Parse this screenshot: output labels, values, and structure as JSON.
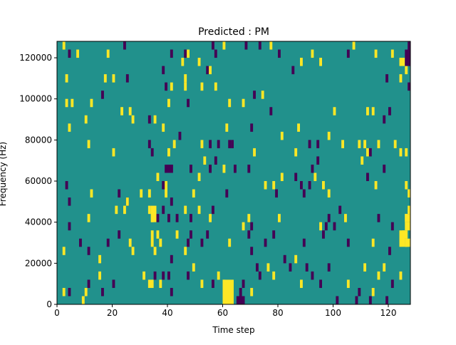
{
  "chart_data": {
    "type": "heatmap",
    "title": "Predicted : PM",
    "xlabel": "Time step",
    "ylabel": "Frequency (Hz)",
    "xlim": [
      0,
      128
    ],
    "ylim": [
      0,
      128000
    ],
    "xticks": [
      0,
      20,
      40,
      60,
      80,
      100,
      120
    ],
    "xtick_labels": [
      "0",
      "20",
      "40",
      "60",
      "80",
      "100",
      "120"
    ],
    "yticks": [
      0,
      20000,
      40000,
      60000,
      80000,
      100000,
      120000
    ],
    "ytick_labels": [
      "0",
      "20000",
      "40000",
      "60000",
      "80000",
      "100000",
      "120000"
    ],
    "value_range": [
      -1,
      1
    ],
    "colors": {
      "background": "#21918c",
      "high": "#fde725",
      "low": "#440154"
    },
    "bin_height_hz": 4000,
    "cells": [
      [
        2,
        124000,
        1
      ],
      [
        4,
        120000,
        -1
      ],
      [
        7,
        120000,
        1
      ],
      [
        18,
        120000,
        1
      ],
      [
        24,
        124000,
        -1
      ],
      [
        41,
        120000,
        -1
      ],
      [
        46,
        120000,
        -1
      ],
      [
        45,
        116000,
        1
      ],
      [
        47,
        120000,
        1
      ],
      [
        56,
        124000,
        -1
      ],
      [
        60,
        124000,
        1
      ],
      [
        68,
        124000,
        -1
      ],
      [
        73,
        124000,
        -1
      ],
      [
        77,
        124000,
        1
      ],
      [
        80,
        120000,
        -1
      ],
      [
        88,
        116000,
        1
      ],
      [
        92,
        120000,
        1
      ],
      [
        105,
        120000,
        -1
      ],
      [
        107,
        124000,
        1
      ],
      [
        115,
        120000,
        1
      ],
      [
        121,
        120000,
        1
      ],
      [
        127,
        120000,
        1
      ],
      [
        3,
        108000,
        1
      ],
      [
        17,
        108000,
        1
      ],
      [
        20,
        108000,
        1
      ],
      [
        25,
        108000,
        -1
      ],
      [
        38,
        112000,
        -1
      ],
      [
        46,
        108000,
        1
      ],
      [
        51,
        116000,
        1
      ],
      [
        54,
        112000,
        -1
      ],
      [
        55,
        112000,
        1
      ],
      [
        57,
        120000,
        -1
      ],
      [
        85,
        112000,
        -1
      ],
      [
        95,
        116000,
        1
      ],
      [
        119,
        108000,
        -1
      ],
      [
        124,
        108000,
        1
      ],
      [
        126,
        112000,
        1
      ],
      [
        3,
        96000,
        1
      ],
      [
        5,
        96000,
        1
      ],
      [
        12,
        96000,
        1
      ],
      [
        16,
        100000,
        -1
      ],
      [
        23,
        92000,
        1
      ],
      [
        26,
        92000,
        1
      ],
      [
        39,
        104000,
        -1
      ],
      [
        40,
        96000,
        1
      ],
      [
        41,
        104000,
        1
      ],
      [
        46,
        104000,
        1
      ],
      [
        47,
        96000,
        -1
      ],
      [
        52,
        104000,
        1
      ],
      [
        57,
        104000,
        1
      ],
      [
        62,
        96000,
        1
      ],
      [
        67,
        96000,
        1
      ],
      [
        71,
        100000,
        -1
      ],
      [
        74,
        100000,
        1
      ],
      [
        77,
        92000,
        -1
      ],
      [
        100,
        92000,
        1
      ],
      [
        112,
        92000,
        1
      ],
      [
        114,
        92000,
        1
      ],
      [
        120,
        92000,
        -1
      ],
      [
        127,
        104000,
        -1
      ],
      [
        4,
        84000,
        1
      ],
      [
        10,
        88000,
        1
      ],
      [
        27,
        88000,
        1
      ],
      [
        33,
        88000,
        -1
      ],
      [
        35,
        88000,
        1
      ],
      [
        38,
        84000,
        1
      ],
      [
        44,
        80000,
        -1
      ],
      [
        61,
        84000,
        1
      ],
      [
        70,
        84000,
        -1
      ],
      [
        81,
        80000,
        1
      ],
      [
        87,
        84000,
        1
      ],
      [
        91,
        76000,
        -1
      ],
      [
        94,
        76000,
        -1
      ],
      [
        98,
        80000,
        1
      ],
      [
        103,
        76000,
        1
      ],
      [
        109,
        76000,
        1
      ],
      [
        111,
        76000,
        1
      ],
      [
        116,
        76000,
        1
      ],
      [
        118,
        88000,
        -1
      ],
      [
        122,
        76000,
        1
      ],
      [
        11,
        76000,
        1
      ],
      [
        20,
        72000,
        1
      ],
      [
        33,
        76000,
        -1
      ],
      [
        34,
        72000,
        -1
      ],
      [
        40,
        72000,
        1
      ],
      [
        42,
        76000,
        1
      ],
      [
        52,
        76000,
        1
      ],
      [
        55,
        76000,
        -1
      ],
      [
        58,
        76000,
        -1
      ],
      [
        62,
        76000,
        -1
      ],
      [
        63,
        76000,
        -1
      ],
      [
        71,
        72000,
        1
      ],
      [
        86,
        72000,
        1
      ],
      [
        94,
        68000,
        -1
      ],
      [
        112,
        72000,
        1
      ],
      [
        113,
        72000,
        -1
      ],
      [
        124,
        72000,
        1
      ],
      [
        126,
        72000,
        1
      ],
      [
        3,
        56000,
        -1
      ],
      [
        4,
        48000,
        -1
      ],
      [
        12,
        52000,
        1
      ],
      [
        22,
        52000,
        -1
      ],
      [
        25,
        48000,
        -1
      ],
      [
        30,
        52000,
        1
      ],
      [
        33,
        52000,
        1
      ],
      [
        36,
        60000,
        1
      ],
      [
        39,
        64000,
        -1
      ],
      [
        41,
        64000,
        -1
      ],
      [
        48,
        64000,
        -1
      ],
      [
        49,
        52000,
        1
      ],
      [
        51,
        60000,
        1
      ],
      [
        53,
        68000,
        1
      ],
      [
        55,
        64000,
        -1
      ],
      [
        57,
        68000,
        -1
      ],
      [
        60,
        64000,
        1
      ],
      [
        61,
        52000,
        -1
      ],
      [
        64,
        64000,
        -1
      ],
      [
        69,
        64000,
        -1
      ],
      [
        75,
        56000,
        1
      ],
      [
        78,
        56000,
        1
      ],
      [
        79,
        52000,
        -1
      ],
      [
        81,
        60000,
        1
      ],
      [
        86,
        60000,
        -1
      ],
      [
        88,
        56000,
        -1
      ],
      [
        89,
        52000,
        -1
      ],
      [
        91,
        56000,
        -1
      ],
      [
        92,
        64000,
        -1
      ],
      [
        93,
        60000,
        1
      ],
      [
        96,
        56000,
        1
      ],
      [
        98,
        52000,
        1
      ],
      [
        110,
        68000,
        1
      ],
      [
        112,
        60000,
        -1
      ],
      [
        115,
        56000,
        1
      ],
      [
        118,
        64000,
        -1
      ],
      [
        126,
        56000,
        1
      ],
      [
        127,
        52000,
        1
      ],
      [
        11,
        40000,
        1
      ],
      [
        21,
        44000,
        1
      ],
      [
        24,
        44000,
        1
      ],
      [
        25,
        48000,
        1
      ],
      [
        33,
        44000,
        1
      ],
      [
        34,
        40000,
        1
      ],
      [
        36,
        40000,
        -1
      ],
      [
        38,
        44000,
        -1
      ],
      [
        40,
        40000,
        -1
      ],
      [
        41,
        48000,
        -1
      ],
      [
        43,
        40000,
        -1
      ],
      [
        46,
        44000,
        1
      ],
      [
        48,
        40000,
        -1
      ],
      [
        51,
        44000,
        1
      ],
      [
        55,
        40000,
        1
      ],
      [
        56,
        44000,
        -1
      ],
      [
        69,
        40000,
        1
      ],
      [
        70,
        36000,
        -1
      ],
      [
        80,
        40000,
        1
      ],
      [
        95,
        36000,
        1
      ],
      [
        97,
        36000,
        -1
      ],
      [
        98,
        40000,
        -1
      ],
      [
        100,
        36000,
        -1
      ],
      [
        102,
        44000,
        -1
      ],
      [
        104,
        40000,
        1
      ],
      [
        116,
        40000,
        -1
      ],
      [
        121,
        36000,
        -1
      ],
      [
        126,
        40000,
        1
      ],
      [
        127,
        44000,
        1
      ],
      [
        2,
        24000,
        1
      ],
      [
        4,
        36000,
        -1
      ],
      [
        8,
        28000,
        -1
      ],
      [
        11,
        24000,
        -1
      ],
      [
        15,
        20000,
        1
      ],
      [
        18,
        28000,
        -1
      ],
      [
        22,
        32000,
        -1
      ],
      [
        26,
        28000,
        1
      ],
      [
        27,
        24000,
        1
      ],
      [
        35,
        24000,
        1
      ],
      [
        36,
        32000,
        1
      ],
      [
        37,
        28000,
        1
      ],
      [
        41,
        20000,
        -1
      ],
      [
        43,
        32000,
        1
      ],
      [
        46,
        24000,
        1
      ],
      [
        47,
        28000,
        -1
      ],
      [
        48,
        32000,
        -1
      ],
      [
        52,
        28000,
        -1
      ],
      [
        54,
        32000,
        -1
      ],
      [
        62,
        28000,
        1
      ],
      [
        67,
        36000,
        1
      ],
      [
        69,
        32000,
        -1
      ],
      [
        70,
        24000,
        -1
      ],
      [
        75,
        28000,
        -1
      ],
      [
        78,
        32000,
        -1
      ],
      [
        82,
        20000,
        -1
      ],
      [
        86,
        20000,
        1
      ],
      [
        89,
        28000,
        -1
      ],
      [
        96,
        32000,
        -1
      ],
      [
        105,
        28000,
        -1
      ],
      [
        114,
        28000,
        1
      ],
      [
        120,
        24000,
        -1
      ],
      [
        126,
        28000,
        1
      ],
      [
        2,
        4000,
        1
      ],
      [
        4,
        4000,
        -1
      ],
      [
        9,
        0,
        1
      ],
      [
        10,
        4000,
        1
      ],
      [
        11,
        8000,
        -1
      ],
      [
        15,
        12000,
        1
      ],
      [
        16,
        4000,
        -1
      ],
      [
        20,
        8000,
        -1
      ],
      [
        31,
        12000,
        1
      ],
      [
        35,
        12000,
        -1
      ],
      [
        37,
        8000,
        1
      ],
      [
        38,
        12000,
        -1
      ],
      [
        40,
        12000,
        -1
      ],
      [
        41,
        4000,
        -1
      ],
      [
        47,
        12000,
        -1
      ],
      [
        49,
        16000,
        1
      ],
      [
        52,
        8000,
        1
      ],
      [
        56,
        8000,
        -1
      ],
      [
        58,
        12000,
        1
      ],
      [
        60,
        8000,
        1
      ],
      [
        61,
        4000,
        1
      ],
      [
        66,
        4000,
        -1
      ],
      [
        67,
        8000,
        -1
      ],
      [
        70,
        4000,
        1
      ],
      [
        72,
        16000,
        -1
      ],
      [
        73,
        12000,
        -1
      ],
      [
        76,
        16000,
        1
      ],
      [
        78,
        12000,
        1
      ],
      [
        84,
        16000,
        -1
      ],
      [
        88,
        8000,
        1
      ],
      [
        90,
        16000,
        -1
      ],
      [
        92,
        12000,
        -1
      ],
      [
        95,
        8000,
        -1
      ],
      [
        98,
        16000,
        -1
      ],
      [
        101,
        0,
        -1
      ],
      [
        105,
        8000,
        1
      ],
      [
        108,
        0,
        -1
      ],
      [
        109,
        4000,
        -1
      ],
      [
        111,
        16000,
        1
      ],
      [
        113,
        0,
        -1
      ],
      [
        114,
        4000,
        1
      ],
      [
        116,
        12000,
        1
      ],
      [
        118,
        16000,
        1
      ],
      [
        119,
        0,
        -1
      ],
      [
        121,
        8000,
        -1
      ],
      [
        124,
        12000,
        1
      ]
    ],
    "blocks": [
      [
        60,
        0,
        64,
        12000,
        1
      ],
      [
        65,
        0,
        68,
        4000,
        -1
      ],
      [
        33,
        8000,
        35,
        12000,
        1
      ],
      [
        34,
        40000,
        36,
        48000,
        1
      ],
      [
        34,
        28000,
        35,
        36000,
        1
      ],
      [
        39,
        52000,
        40,
        60000,
        1
      ],
      [
        40,
        64000,
        42,
        68000,
        -1
      ],
      [
        126,
        36000,
        128,
        40000,
        1
      ],
      [
        124,
        28000,
        126,
        36000,
        1
      ],
      [
        125,
        32000,
        127,
        36000,
        1
      ],
      [
        126,
        28000,
        128,
        32000,
        1
      ],
      [
        126,
        40000,
        128,
        44000,
        1
      ],
      [
        124,
        116000,
        126,
        120000,
        1
      ],
      [
        126,
        116000,
        128,
        124000,
        -1
      ],
      [
        127,
        120000,
        128,
        128000,
        -1
      ],
      [
        38,
        56000,
        39,
        60000,
        -1
      ]
    ]
  }
}
